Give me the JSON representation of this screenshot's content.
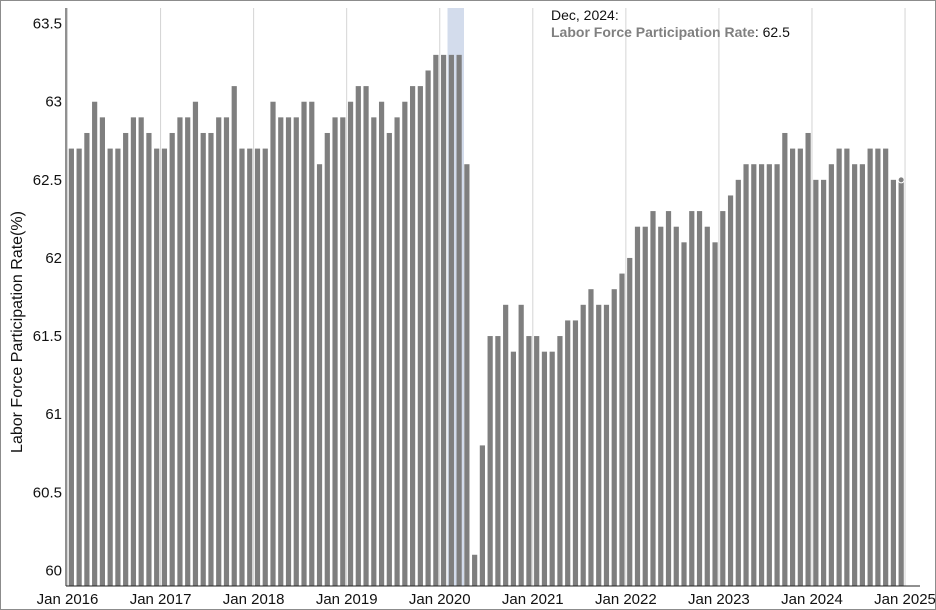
{
  "chart_data": {
    "type": "bar",
    "ylabel": "Labor Force Participation Rate(%)",
    "xlabel": "",
    "ylim": [
      59.9,
      63.6
    ],
    "yticks": [
      60,
      60.5,
      61,
      61.5,
      62,
      62.5,
      63,
      63.5
    ],
    "xtick_labels": [
      "Jan 2016",
      "Jan 2017",
      "Jan 2018",
      "Jan 2019",
      "Jan 2020",
      "Jan 2021",
      "Jan 2022",
      "Jan 2023",
      "Jan 2024",
      "Jan 2025"
    ],
    "start_month": "Jan 2016",
    "end_month": "Dec 2024",
    "series": [
      {
        "name": "Labor Force Participation Rate",
        "color": "#7f7f7f",
        "values": [
          62.7,
          62.7,
          62.8,
          63.0,
          62.9,
          62.7,
          62.7,
          62.8,
          62.9,
          62.9,
          62.8,
          62.7,
          62.7,
          62.8,
          62.9,
          62.9,
          63.0,
          62.8,
          62.8,
          62.9,
          62.9,
          63.1,
          62.7,
          62.7,
          62.7,
          62.7,
          63.0,
          62.9,
          62.9,
          62.9,
          63.0,
          63.0,
          62.6,
          62.8,
          62.9,
          62.9,
          63.0,
          63.1,
          63.1,
          62.9,
          63.0,
          62.8,
          62.9,
          63.0,
          63.1,
          63.1,
          63.2,
          63.3,
          63.3,
          63.3,
          63.3,
          62.6,
          60.1,
          60.8,
          61.5,
          61.5,
          61.7,
          61.4,
          61.7,
          61.5,
          61.5,
          61.4,
          61.4,
          61.5,
          61.6,
          61.6,
          61.7,
          61.8,
          61.7,
          61.7,
          61.8,
          61.9,
          62.0,
          62.2,
          62.2,
          62.3,
          62.2,
          62.3,
          62.2,
          62.1,
          62.3,
          62.3,
          62.2,
          62.1,
          62.3,
          62.4,
          62.5,
          62.6,
          62.6,
          62.6,
          62.6,
          62.6,
          62.8,
          62.7,
          62.7,
          62.8,
          62.5,
          62.5,
          62.6,
          62.7,
          62.7,
          62.6,
          62.6,
          62.7,
          62.7,
          62.7,
          62.5,
          62.5
        ]
      }
    ],
    "recession_shading": [
      "Feb 2020",
      "Apr 2020"
    ],
    "recession_color": "#d3dcec",
    "grid": "vertical lines at January ticks"
  },
  "tooltip": {
    "date": "Dec, 2024:",
    "series_label": "Labor Force Participation Rate",
    "value_text": ": 62.5"
  }
}
